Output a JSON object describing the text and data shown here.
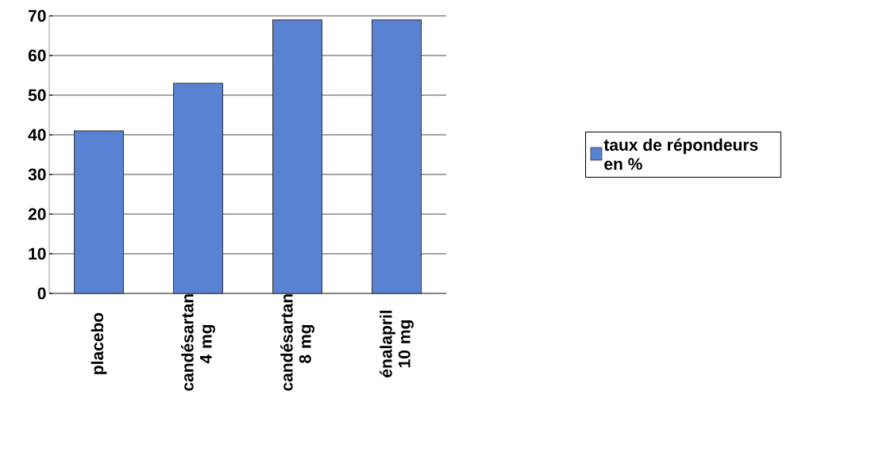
{
  "chart_data": {
    "type": "bar",
    "categories": [
      "placebo",
      "candésartan 4 mg",
      "candésartan 8 mg",
      "énalapril 10 mg"
    ],
    "series": [
      {
        "name": "taux de répondeurs en %",
        "color": "#5a82d2",
        "values": [
          41,
          53,
          69,
          69
        ]
      }
    ],
    "ylim": [
      0,
      70
    ],
    "yticks": [
      0,
      10,
      20,
      30,
      40,
      50,
      60,
      70
    ],
    "grid": "y",
    "legend": "right"
  }
}
